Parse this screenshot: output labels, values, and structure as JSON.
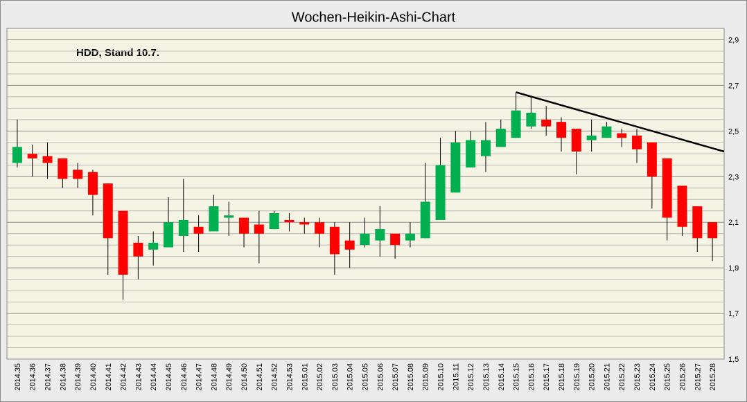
{
  "chart_data": {
    "type": "candlestick",
    "title": "Wochen-Heikin-Ashi-Chart",
    "annotation": "HDD, Stand 10.7.",
    "categories": [
      "2014.35",
      "2014.36",
      "2014.37",
      "2014.38",
      "2014.39",
      "2014.40",
      "2014.41",
      "2014.42",
      "2014.43",
      "2014.44",
      "2014.45",
      "2014.46",
      "2014.47",
      "2014.48",
      "2014.49",
      "2014.50",
      "2014.51",
      "2014.52",
      "2014.53",
      "2015.01",
      "2015.02",
      "2015.03",
      "2015.04",
      "2015.05",
      "2015.06",
      "2015.07",
      "2015.08",
      "2015.09",
      "2015.10",
      "2015.11",
      "2015.12",
      "2015.13",
      "2015.14",
      "2015.15",
      "2015.16",
      "2015.17",
      "2015.18",
      "2015.19",
      "2015.20",
      "2015.21",
      "2015.22",
      "2015.23",
      "2015.24",
      "2015.25",
      "2015.26",
      "2015.27",
      "2015.28"
    ],
    "open": [
      2.36,
      2.4,
      2.39,
      2.38,
      2.33,
      2.32,
      2.27,
      2.15,
      2.01,
      1.98,
      1.99,
      2.04,
      2.08,
      2.06,
      2.12,
      2.12,
      2.09,
      2.07,
      2.11,
      2.1,
      2.1,
      2.08,
      2.02,
      2.0,
      2.02,
      2.05,
      2.02,
      2.03,
      2.11,
      2.23,
      2.34,
      2.39,
      2.43,
      2.47,
      2.52,
      2.55,
      2.54,
      2.51,
      2.46,
      2.47,
      2.49,
      2.48,
      2.45,
      2.38,
      2.26,
      2.17,
      2.1
    ],
    "high": [
      2.55,
      2.44,
      2.45,
      2.38,
      2.36,
      2.33,
      2.27,
      2.15,
      2.04,
      2.06,
      2.21,
      2.29,
      2.13,
      2.22,
      2.19,
      2.12,
      2.15,
      2.15,
      2.14,
      2.12,
      2.12,
      2.1,
      2.1,
      2.12,
      2.17,
      2.05,
      2.1,
      2.36,
      2.47,
      2.5,
      2.5,
      2.54,
      2.55,
      2.67,
      2.65,
      2.61,
      2.56,
      2.51,
      2.55,
      2.54,
      2.51,
      2.51,
      2.45,
      2.38,
      2.26,
      2.17,
      2.1
    ],
    "low": [
      2.34,
      2.3,
      2.29,
      2.25,
      2.25,
      2.13,
      1.87,
      1.76,
      1.85,
      1.91,
      1.99,
      1.97,
      1.97,
      2.06,
      2.04,
      1.99,
      1.92,
      2.07,
      2.06,
      2.05,
      1.99,
      1.87,
      1.9,
      1.99,
      1.95,
      1.94,
      1.99,
      2.03,
      2.11,
      2.23,
      2.34,
      2.32,
      2.43,
      2.47,
      2.51,
      2.48,
      2.41,
      2.31,
      2.41,
      2.47,
      2.43,
      2.36,
      2.16,
      2.02,
      2.04,
      1.97,
      1.93
    ],
    "close": [
      2.43,
      2.38,
      2.36,
      2.29,
      2.29,
      2.22,
      2.03,
      1.87,
      1.95,
      2.01,
      2.1,
      2.11,
      2.05,
      2.17,
      2.13,
      2.05,
      2.05,
      2.14,
      2.1,
      2.09,
      2.05,
      1.96,
      1.98,
      2.05,
      2.07,
      2.0,
      2.05,
      2.19,
      2.35,
      2.45,
      2.46,
      2.46,
      2.51,
      2.59,
      2.58,
      2.52,
      2.47,
      2.41,
      2.48,
      2.52,
      2.47,
      2.42,
      2.3,
      2.12,
      2.08,
      2.03,
      2.03
    ],
    "up_color": "#00b050",
    "down_color": "#ff0000",
    "ylim": [
      1.5,
      2.95
    ],
    "yticks": [
      {
        "value": 1.5,
        "label": "1,5"
      },
      {
        "value": 1.7,
        "label": "1,7"
      },
      {
        "value": 1.9,
        "label": "1,9"
      },
      {
        "value": 2.1,
        "label": "2,1"
      },
      {
        "value": 2.3,
        "label": "2,3"
      },
      {
        "value": 2.5,
        "label": "2,5"
      },
      {
        "value": 2.7,
        "label": "2,7"
      },
      {
        "value": 2.9,
        "label": "2,9"
      }
    ],
    "ygrid": [
      1.55,
      1.6,
      1.65,
      1.75,
      1.8,
      1.85,
      1.95,
      2,
      2.05,
      2.15,
      2.2,
      2.25,
      2.35,
      2.4,
      2.45,
      2.55,
      2.6,
      2.65,
      2.75,
      2.8,
      2.85
    ],
    "grid": true,
    "trendline": {
      "start": "2015.15",
      "values": [
        2.67,
        2.41
      ],
      "color": "#000000"
    }
  }
}
